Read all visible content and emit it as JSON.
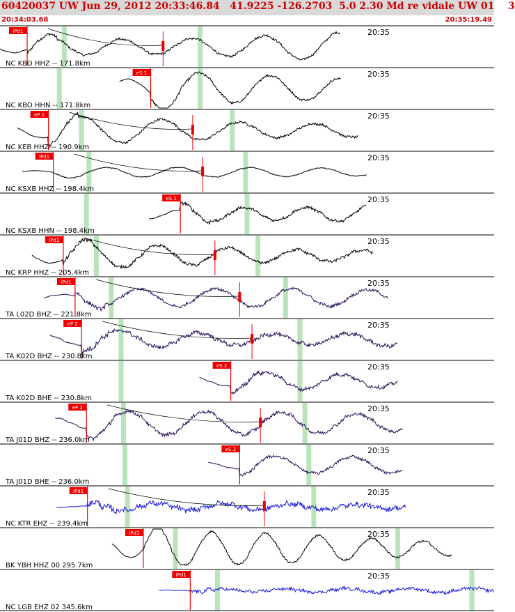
{
  "header": {
    "title": "60420037 UW Jun 29, 2012 20:33:46.84   41.9225 -126.2703  5.0 2.30 Md re vidale UW 01    3",
    "start_time": "20:34:03.68",
    "end_time": "20:35:19.49"
  },
  "colors": {
    "header_bg": "#d9d9d9",
    "header_text": "#cc0000",
    "pick": "#ee0000",
    "window": "#b9e4bb",
    "trace_hh": "#000000",
    "trace_bh": "#2a1058",
    "trace_eh": "#1a1adf"
  },
  "minute_label": "20:35",
  "traces": [
    {
      "label": "NC KBO HHZ -- 171.8km",
      "pick": "iPd1",
      "pick_t": 0.055,
      "win": [
        0.13,
        0.405
      ],
      "seis_end": 0.69,
      "amp": 27,
      "noise": 0.08,
      "f": 34,
      "pre": 0.55,
      "color": "#000000",
      "mark": 0.33
    },
    {
      "label": "NC KBO HHN -- 171.8km",
      "pick": "eS 1",
      "pick_t": 0.305,
      "win": [
        0.12,
        0.405
      ],
      "seis_end": 0.69,
      "amp": 25,
      "noise": 0.09,
      "f": 32,
      "pre": 0.55,
      "color": "#000000",
      "mark": null
    },
    {
      "label": "NC KEB HHZ -- 190.9km",
      "pick": "eP 1",
      "pick_t": 0.098,
      "win": [
        0.165,
        0.47
      ],
      "seis_end": 0.725,
      "amp": 24,
      "noise": 0.09,
      "f": 36,
      "pre": 0.5,
      "color": "#000000",
      "mark": 0.39
    },
    {
      "label": "NC KSXB HHZ -- 198.4km",
      "pick": "iPd1",
      "pick_t": 0.108,
      "win": [
        0.18,
        0.497
      ],
      "seis_end": 0.742,
      "amp": 7,
      "noise": 0.12,
      "f": 32,
      "pre": 0.35,
      "color": "#000000",
      "mark": 0.41
    },
    {
      "label": "NC KSXB HHN -- 198.4km",
      "pick": "eS 1",
      "pick_t": 0.365,
      "win": [
        0.175,
        0.5
      ],
      "seis_end": 0.742,
      "amp": 22,
      "noise": 0.12,
      "f": 30,
      "pre": 0.5,
      "color": "#000000",
      "mark": null
    },
    {
      "label": "NC KRP HHZ -- 205.4km",
      "pick": "iPd1",
      "pick_t": 0.128,
      "win": [
        0.195,
        0.522
      ],
      "seis_end": 0.755,
      "amp": 20,
      "noise": 0.14,
      "f": 32,
      "pre": 0.55,
      "color": "#000000",
      "mark": 0.435
    },
    {
      "label": "TA L02D BHZ -- 221.8km",
      "pick": "iPd1",
      "pick_t": 0.152,
      "win": [
        0.225,
        0.578
      ],
      "seis_end": 0.785,
      "amp": 13,
      "noise": 0.22,
      "f": 34,
      "pre": 0.4,
      "color": "#2a1058",
      "mark": 0.485
    },
    {
      "label": "TA K02D BHZ -- 230.8km",
      "pick": "eP 2",
      "pick_t": 0.165,
      "win": [
        0.245,
        0.607
      ],
      "seis_end": 0.805,
      "amp": 19,
      "noise": 0.2,
      "f": 36,
      "pre": 0.55,
      "color": "#2a1058",
      "mark": 0.51
    },
    {
      "label": "TA K02D BHE -- 230.8km",
      "pick": "eS 2",
      "pick_t": 0.467,
      "win": [
        0.245,
        0.607
      ],
      "seis_end": 0.805,
      "amp": 15,
      "noise": 0.22,
      "f": 34,
      "pre": 0.5,
      "color": "#2a1058",
      "mark": null
    },
    {
      "label": "TA J01D BHZ -- 236.0km",
      "pick": "eP 2",
      "pick_t": 0.175,
      "win": [
        0.25,
        0.617
      ],
      "seis_end": 0.815,
      "amp": 17,
      "noise": 0.2,
      "f": 34,
      "pre": 0.5,
      "color": "#2a1058",
      "mark": 0.527
    },
    {
      "label": "TA J01D BHE -- 236.0km",
      "pick": "eS 2",
      "pick_t": 0.485,
      "win": [
        0.253,
        0.625
      ],
      "seis_end": 0.815,
      "amp": 12,
      "noise": 0.22,
      "f": 34,
      "pre": 0.45,
      "color": "#2a1058",
      "mark": null
    },
    {
      "label": "NC KTR EHZ -- 239.4km",
      "pick": "iPd1",
      "pick_t": 0.177,
      "win": [
        0.258,
        0.635
      ],
      "seis_end": 0.822,
      "amp": 5,
      "noise": 0.95,
      "f": 30,
      "pre": 0.2,
      "color": "#1a1adf",
      "mark": 0.535
    },
    {
      "label": "BK YBH HHZ 00 295.7km",
      "pick": "iPd1",
      "pick_t": 0.29,
      "win": [
        0.355,
        0.805
      ],
      "seis_end": 0.915,
      "amp": 24,
      "noise": 0.08,
      "f": 24,
      "pre": 0.55,
      "color": "#000000",
      "mark": null
    },
    {
      "label": "NC LGB EHZ 02 345.6km",
      "pick": "iPd1",
      "pick_t": 0.385,
      "win": [
        0.44,
        0.955
      ],
      "seis_end": 1.0,
      "amp": 3,
      "noise": 1.0,
      "f": 28,
      "pre": 0.25,
      "color": "#1a1adf",
      "mark": null
    }
  ]
}
